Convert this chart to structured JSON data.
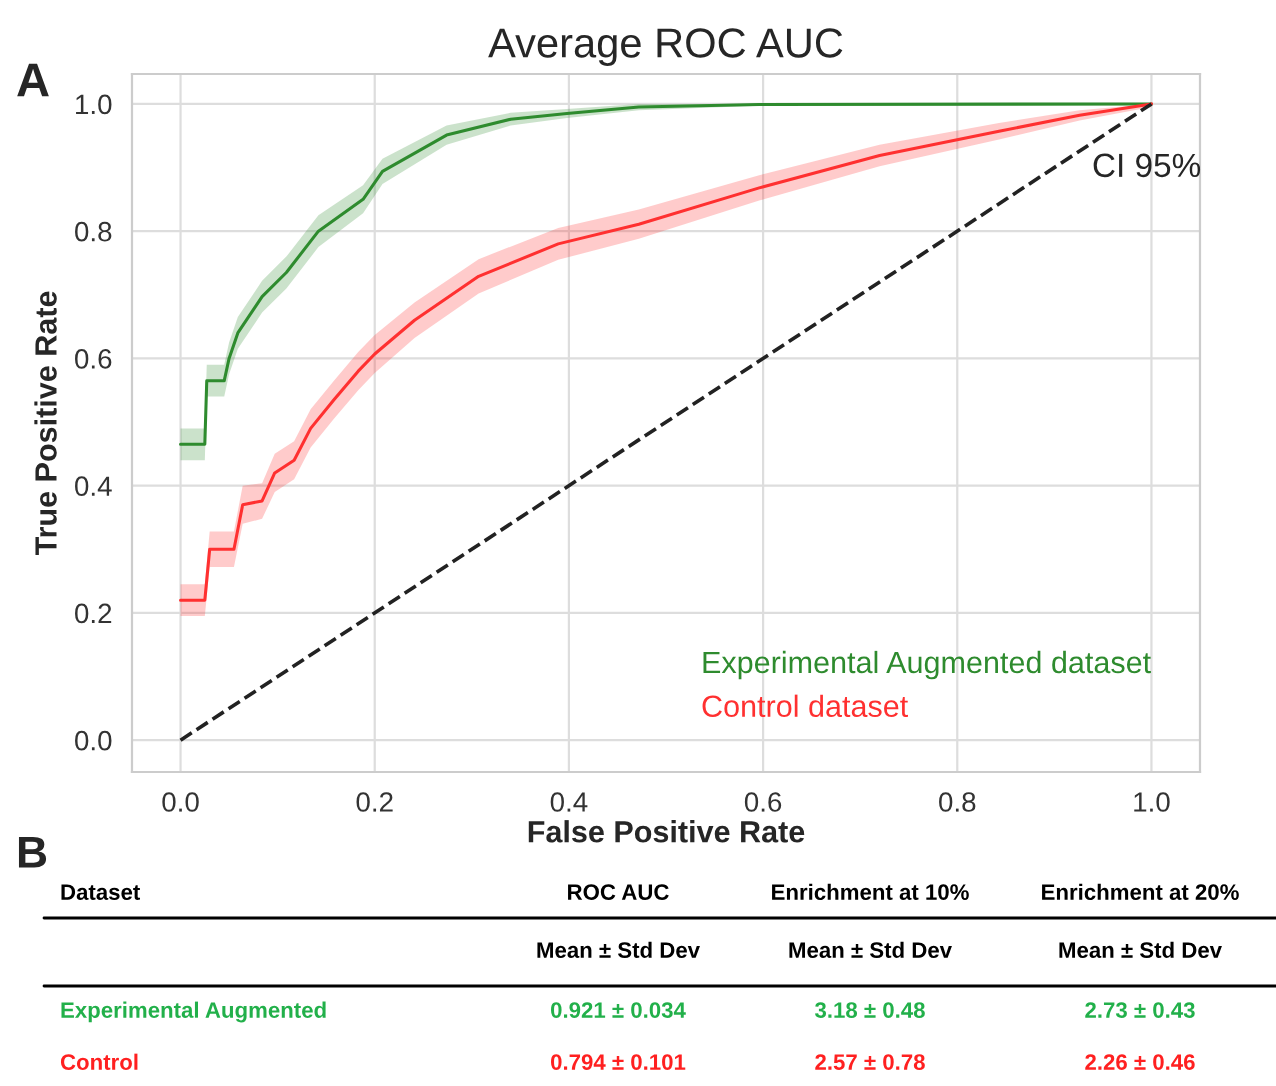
{
  "chart_data": [
    {
      "type": "line",
      "title": "Average ROC AUC",
      "xlabel": "False Positive Rate",
      "ylabel": "True Positive Rate",
      "xlim": [
        -0.05,
        1.05
      ],
      "ylim": [
        -0.05,
        1.047
      ],
      "xticks": [
        {
          "value": 0,
          "label": "0.0"
        },
        0.2,
        0.4,
        0.6,
        0.8,
        {
          "value": 1,
          "label": "1.0"
        }
      ],
      "yticks": [
        {
          "value": 0,
          "label": "0.0"
        },
        0.2,
        0.4,
        0.6,
        0.8,
        {
          "value": 1,
          "label": "1.0"
        }
      ],
      "grid": true,
      "legend": "bottom right",
      "series": [
        {
          "name": "Experimental Augmented dataset",
          "color": "#2e8b2e",
          "x": [
            0,
            0.025,
            0.027,
            0.045,
            0.05,
            0.059,
            0.084,
            0.109,
            0.142,
            0.188,
            0.208,
            0.274,
            0.34,
            0.398,
            0.472,
            0.596,
            1.0
          ],
          "values": [
            0.465,
            0.465,
            0.565,
            0.565,
            0.6,
            0.64,
            0.697,
            0.735,
            0.8,
            0.85,
            0.894,
            0.951,
            0.976,
            0.985,
            0.995,
            0.999,
            1.0
          ],
          "lower": [
            0.44,
            0.44,
            0.54,
            0.54,
            0.575,
            0.615,
            0.672,
            0.71,
            0.775,
            0.828,
            0.874,
            0.936,
            0.966,
            0.978,
            0.99,
            0.997,
            1.0
          ],
          "upper": [
            0.49,
            0.49,
            0.59,
            0.59,
            0.625,
            0.665,
            0.722,
            0.76,
            0.825,
            0.872,
            0.914,
            0.966,
            0.986,
            0.992,
            1.0,
            1.0,
            1.0
          ]
        },
        {
          "name": "Control dataset",
          "color": "#ff3030",
          "x": [
            0,
            0.025,
            0.03,
            0.055,
            0.064,
            0.084,
            0.097,
            0.117,
            0.134,
            0.158,
            0.183,
            0.2,
            0.241,
            0.307,
            0.389,
            0.472,
            0.596,
            0.72,
            0.843,
            0.926,
            1.0
          ],
          "values": [
            0.22,
            0.22,
            0.3,
            0.3,
            0.37,
            0.376,
            0.42,
            0.44,
            0.49,
            0.535,
            0.58,
            0.607,
            0.66,
            0.729,
            0.78,
            0.811,
            0.868,
            0.919,
            0.957,
            0.982,
            1.0
          ],
          "lower": [
            0.195,
            0.195,
            0.272,
            0.272,
            0.34,
            0.348,
            0.39,
            0.41,
            0.46,
            0.505,
            0.55,
            0.577,
            0.632,
            0.702,
            0.755,
            0.788,
            0.848,
            0.902,
            0.944,
            0.974,
            0.995
          ],
          "upper": [
            0.245,
            0.245,
            0.328,
            0.328,
            0.4,
            0.404,
            0.45,
            0.47,
            0.52,
            0.565,
            0.61,
            0.637,
            0.688,
            0.756,
            0.805,
            0.834,
            0.888,
            0.936,
            0.97,
            0.99,
            1.0
          ]
        },
        {
          "type": "line",
          "color": "#222222",
          "line_style": "dashed",
          "x": [
            0,
            1
          ],
          "values": [
            0,
            1
          ]
        }
      ],
      "annotations": [
        "A",
        "CI 95%"
      ]
    },
    {
      "type": "other",
      "colors": [
        "#22b04a",
        "#ff2020"
      ],
      "annotations": [
        "B",
        "Dataset",
        "ROC AUC",
        "Enrichment at 10%",
        "Enrichment at 20%",
        "Mean ± Std Dev",
        "Mean ± Std Dev",
        "Mean ± Std Dev",
        "Experimental Augmented",
        "0.921 ± 0.034",
        "3.18 ± 0.48",
        "2.73 ± 0.43",
        "Control",
        "0.794 ± 0.101",
        "2.57 ± 0.78",
        "2.26 ± 0.46"
      ]
    }
  ]
}
